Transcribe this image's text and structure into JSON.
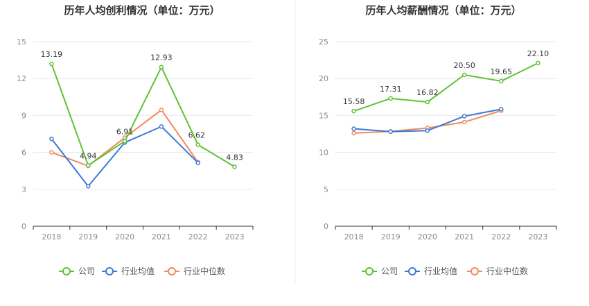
{
  "colors": {
    "company": "#5cc332",
    "industry_avg": "#3d78d8",
    "industry_median": "#ef8a5e",
    "grid": "#e6e9f0",
    "axis": "#333333",
    "divider": "#eeeeee"
  },
  "chart_data": [
    {
      "type": "line",
      "title": "历年人均创利情况（单位：万元）",
      "categories": [
        "2018",
        "2019",
        "2020",
        "2021",
        "2022",
        "2023"
      ],
      "ylim": [
        0,
        15
      ],
      "yticks": [
        "0",
        "3",
        "6",
        "9",
        "12",
        "15"
      ],
      "grid": true,
      "legend_position": "bottom",
      "series": [
        {
          "name": "公司",
          "color_key": "company",
          "values": [
            13.19,
            4.94,
            6.91,
            12.93,
            6.62,
            4.83
          ],
          "labels": [
            "13.19",
            "4.94",
            "6.91",
            "12.93",
            "6.62",
            "4.83"
          ]
        },
        {
          "name": "行业均值",
          "color_key": "industry_avg",
          "values": [
            7.1,
            3.25,
            6.8,
            8.1,
            5.15,
            null
          ]
        },
        {
          "name": "行业中位数",
          "color_key": "industry_median",
          "values": [
            6.0,
            4.9,
            7.2,
            9.45,
            5.2,
            null
          ]
        }
      ]
    },
    {
      "type": "line",
      "title": "历年人均薪酬情况（单位：万元）",
      "categories": [
        "2018",
        "2019",
        "2020",
        "2021",
        "2022",
        "2023"
      ],
      "ylim": [
        0,
        25
      ],
      "yticks": [
        "0",
        "5",
        "10",
        "15",
        "20",
        "25"
      ],
      "grid": true,
      "legend_position": "bottom",
      "series": [
        {
          "name": "公司",
          "color_key": "company",
          "values": [
            15.58,
            17.31,
            16.82,
            20.5,
            19.65,
            22.1
          ],
          "labels": [
            "15.58",
            "17.31",
            "16.82",
            "20.50",
            "19.65",
            "22.10"
          ]
        },
        {
          "name": "行业均值",
          "color_key": "industry_avg",
          "values": [
            13.2,
            12.8,
            12.95,
            14.9,
            15.85,
            null
          ]
        },
        {
          "name": "行业中位数",
          "color_key": "industry_median",
          "values": [
            12.6,
            12.85,
            13.3,
            14.1,
            15.65,
            null
          ]
        }
      ]
    }
  ]
}
